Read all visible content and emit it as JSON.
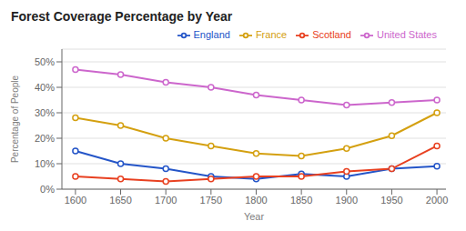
{
  "chart_data": {
    "type": "line",
    "title": "Forest Coverage Percentage by Year",
    "x_label": "Year",
    "y_label": "Percentage of People",
    "x": [
      1600,
      1650,
      1700,
      1750,
      1800,
      1850,
      1900,
      1950,
      2000
    ],
    "series": [
      {
        "name": "England",
        "color": "#2455c8",
        "marker": "circle",
        "values": [
          15,
          10,
          8,
          5,
          4,
          6,
          5,
          8,
          9
        ]
      },
      {
        "name": "Scotland",
        "color": "#e84020",
        "marker": "circle",
        "values": [
          5,
          4,
          3,
          4,
          5,
          5,
          7,
          8,
          17
        ]
      },
      {
        "name": "France",
        "color": "#d4a010",
        "marker": "circle",
        "values": [
          28,
          25,
          20,
          17,
          14,
          13,
          16,
          21,
          30
        ]
      },
      {
        "name": "United States",
        "color": "#cc66cc",
        "marker": "circle",
        "values": [
          47,
          45,
          42,
          40,
          37,
          35,
          33,
          34,
          35
        ]
      }
    ],
    "xlim": [
      1585,
      2010
    ],
    "xticks": [
      1600,
      1650,
      1700,
      1750,
      1800,
      1850,
      1900,
      1950,
      2000
    ],
    "ylim": [
      0,
      55
    ],
    "yticks": [
      {
        "value": 0,
        "label": "0%"
      },
      {
        "value": 10,
        "label": "10%"
      },
      {
        "value": 20,
        "label": "20%"
      },
      {
        "value": 30,
        "label": "30%"
      },
      {
        "value": 40,
        "label": "40%"
      },
      {
        "value": 50,
        "label": "50%"
      }
    ],
    "grid": "y",
    "legend": "upper right"
  }
}
